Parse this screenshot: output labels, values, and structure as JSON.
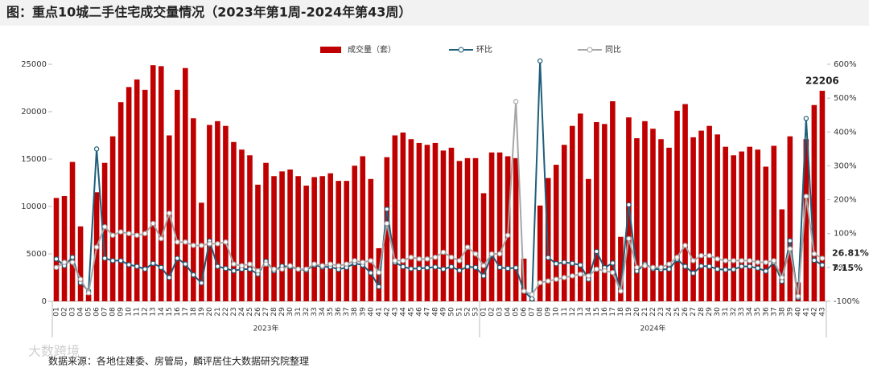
{
  "chart_data": {
    "type": "bar_line",
    "title": "图：重点10城二手住宅成交量情况（2023年第1周-2024年第43周）",
    "source": "数据来源：各地住建委、房管局，麟评居住大数据研究院整理",
    "watermark": "大数跨境",
    "groups": [
      {
        "label": "2023年",
        "categories": [
          "01",
          "02",
          "03",
          "04",
          "05",
          "06",
          "07",
          "08",
          "09",
          "10",
          "11",
          "12",
          "13",
          "14",
          "15",
          "16",
          "17",
          "18",
          "19",
          "20",
          "21",
          "22",
          "23",
          "24",
          "25",
          "26",
          "27",
          "28",
          "29",
          "30",
          "31",
          "32",
          "33",
          "34",
          "35",
          "36",
          "37",
          "38",
          "39",
          "40",
          "41",
          "42",
          "43",
          "44",
          "45",
          "46",
          "47",
          "48",
          "49",
          "50",
          "51",
          "52",
          "53"
        ]
      },
      {
        "label": "2024年",
        "categories": [
          "01",
          "02",
          "03",
          "04",
          "05",
          "06",
          "07",
          "08",
          "09",
          "10",
          "11",
          "12",
          "13",
          "14",
          "15",
          "16",
          "17",
          "18",
          "19",
          "20",
          "21",
          "22",
          "23",
          "24",
          "25",
          "26",
          "27",
          "28",
          "29",
          "30",
          "31",
          "32",
          "33",
          "34",
          "35",
          "36",
          "37",
          "38",
          "39",
          "40",
          "41",
          "42",
          "43"
        ]
      }
    ],
    "ylim": [
      0,
      25000
    ],
    "yticks": [
      0,
      5000,
      10000,
      15000,
      20000,
      25000
    ],
    "y2lim": [
      -100,
      600
    ],
    "y2ticks": [
      {
        "value": -100,
        "label": "-100%"
      },
      {
        "value": 0,
        "label": "0%"
      },
      {
        "value": 100,
        "label": "100%"
      },
      {
        "value": 200,
        "label": "200%"
      },
      {
        "value": 300,
        "label": "300%"
      },
      {
        "value": 400,
        "label": "400%"
      },
      {
        "value": 500,
        "label": "500%"
      },
      {
        "value": 600,
        "label": "600%"
      }
    ],
    "series": [
      {
        "name": "成交量（套）",
        "type": "bar",
        "color": "#c00000",
        "values": [
          10900,
          11100,
          14700,
          7900,
          700,
          11500,
          14600,
          17400,
          21000,
          22600,
          23400,
          22300,
          24900,
          24800,
          17500,
          22300,
          24600,
          19300,
          10400,
          18600,
          19000,
          18500,
          16800,
          16000,
          15400,
          12300,
          14600,
          13200,
          13700,
          13900,
          13200,
          12200,
          13100,
          13200,
          13500,
          12700,
          12700,
          14300,
          15300,
          12900,
          5600,
          15200,
          17500,
          17800,
          17100,
          16700,
          16500,
          16700,
          15900,
          16200,
          14800,
          15100,
          15100,
          11400,
          15700,
          15700,
          15300,
          15100,
          4500,
          300,
          10100,
          13000,
          14400,
          16500,
          18500,
          19800,
          12900,
          18900,
          18700,
          21100,
          6800,
          19400,
          17200,
          19000,
          18200,
          17100,
          16200,
          20100,
          20800,
          17300,
          18000,
          18500,
          17600,
          16300,
          15400,
          15800,
          16300,
          16000,
          14200,
          16400,
          9700,
          17400,
          2000,
          17100,
          20700,
          22206
        ]
      },
      {
        "name": "环比",
        "type": "line",
        "axis": "y2",
        "color": "#1f5f7a",
        "values": [
          25,
          5,
          30,
          -45,
          -70,
          350,
          27,
          20,
          20,
          8,
          3,
          -5,
          12,
          0,
          -30,
          27,
          10,
          -22,
          -46,
          78,
          3,
          -3,
          -10,
          -5,
          -5,
          -20,
          18,
          -10,
          4,
          2,
          -5,
          -8,
          7,
          1,
          2,
          -6,
          0,
          12,
          7,
          -16,
          -57,
          172,
          15,
          2,
          -4,
          -3,
          -1,
          1,
          -5,
          2,
          -9,
          2,
          0,
          -25,
          38,
          0,
          -3,
          -1,
          -70,
          -93,
          610,
          29,
          11,
          15,
          12,
          7,
          -35,
          47,
          -1,
          13,
          -68,
          185,
          -11,
          10,
          -4,
          -6,
          -5,
          24,
          3,
          -17,
          4,
          3,
          -5,
          -7,
          -6,
          3,
          3,
          -2,
          -11,
          15,
          -41,
          79,
          -89,
          440,
          21,
          7.15
        ],
        "value_labels": {
          "95": "7.15%"
        }
      },
      {
        "name": "同比",
        "type": "line",
        "axis": "y2",
        "color": "#a6a6a6",
        "values": [
          0,
          15,
          15,
          -35,
          -75,
          60,
          120,
          95,
          105,
          100,
          95,
          100,
          130,
          85,
          160,
          75,
          75,
          65,
          65,
          70,
          70,
          75,
          10,
          5,
          10,
          -10,
          10,
          -5,
          -5,
          5,
          -5,
          -5,
          10,
          5,
          10,
          5,
          10,
          20,
          15,
          20,
          -15,
          130,
          20,
          20,
          30,
          25,
          25,
          30,
          45,
          30,
          20,
          60,
          40,
          5,
          40,
          40,
          95,
          490,
          -70,
          -80,
          -45,
          -40,
          -35,
          -30,
          -25,
          -20,
          -25,
          -5,
          -10,
          -15,
          -70,
          85,
          0,
          5,
          0,
          0,
          10,
          30,
          65,
          20,
          35,
          35,
          25,
          20,
          20,
          20,
          20,
          15,
          15,
          20,
          -30,
          55,
          -85,
          210,
          40,
          26.81
        ],
        "value_labels": {
          "95": "26.81%"
        }
      }
    ]
  }
}
